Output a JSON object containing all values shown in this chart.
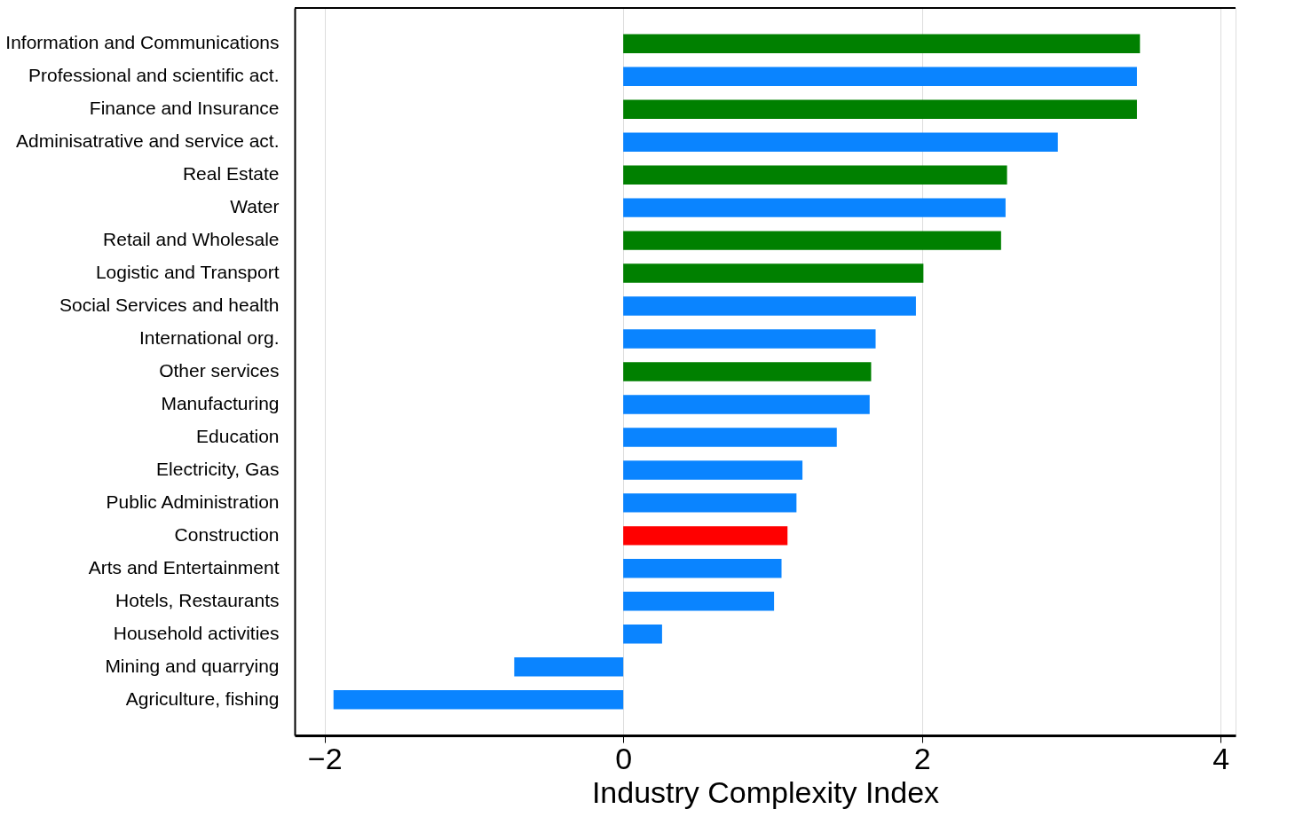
{
  "chart_data": {
    "type": "bar",
    "orientation": "horizontal",
    "xlabel": "Industry Complexity Index",
    "categories": [
      "Information and Communications",
      "Professional and scientific act.",
      "Finance and Insurance",
      "Adminisatrative and service act.",
      "Real Estate",
      "Water",
      "Retail and Wholesale",
      "Logistic and Transport",
      "Social Services and health",
      "International org.",
      "Other services",
      "Manufacturing",
      "Education",
      "Electricity, Gas",
      "Public Administration",
      "Construction",
      "Arts and Entertainment",
      "Hotels, Restaurants",
      "Household activities",
      "Mining and quarrying",
      "Agriculture, fishing"
    ],
    "values": [
      3.46,
      3.44,
      3.44,
      2.91,
      2.57,
      2.56,
      2.53,
      2.01,
      1.96,
      1.69,
      1.66,
      1.65,
      1.43,
      1.2,
      1.16,
      1.1,
      1.06,
      1.01,
      0.26,
      -0.73,
      -1.94
    ],
    "colors": [
      "#008000",
      "#0a84ff",
      "#008000",
      "#0a84ff",
      "#008000",
      "#0a84ff",
      "#008000",
      "#008000",
      "#0a84ff",
      "#0a84ff",
      "#008000",
      "#0a84ff",
      "#0a84ff",
      "#0a84ff",
      "#0a84ff",
      "#ff0000",
      "#0a84ff",
      "#0a84ff",
      "#0a84ff",
      "#0a84ff",
      "#0a84ff"
    ],
    "xlim": [
      -2.2,
      4.1
    ],
    "xticks": [
      -2,
      0,
      2,
      4
    ],
    "grid": "x"
  }
}
